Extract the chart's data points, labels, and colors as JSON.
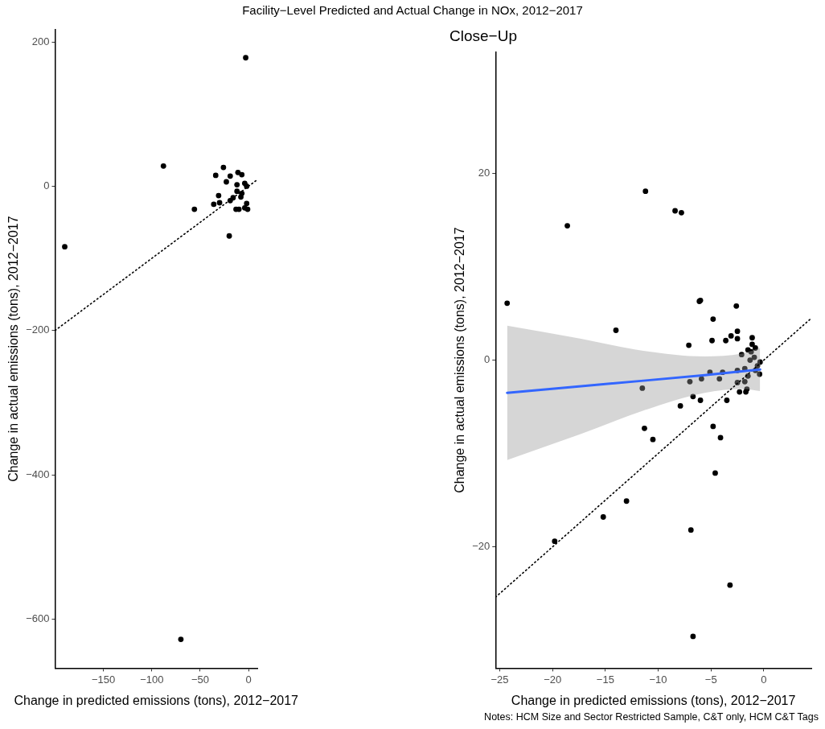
{
  "chart_data": [
    {
      "type": "scatter",
      "title": "Facility−Level Predicted and Actual Change in NOx, 2012−2017",
      "xlabel": "Change in predicted emissions (tons), 2012−2017",
      "ylabel": "Change in actual emissions (tons), 2012−2017",
      "xlim": [
        -200,
        9
      ],
      "ylim": [
        -668,
        217
      ],
      "xticks": [
        {
          "value": -150,
          "label": "−150"
        },
        {
          "value": -100,
          "label": "−100"
        },
        {
          "value": -50,
          "label": "−50"
        },
        0
      ],
      "yticks": [
        {
          "value": -600,
          "label": "−600"
        },
        {
          "value": -400,
          "label": "−400"
        },
        {
          "value": -200,
          "label": "−200"
        },
        0,
        200
      ],
      "grid": false,
      "legend": false,
      "marker": "circle",
      "series": [
        {
          "type": "scatter",
          "color": "#000000",
          "x": [
            -3,
            -190,
            -88,
            -56,
            -20,
            -70,
            -26,
            -34,
            -19,
            -11,
            -7,
            -23,
            -4,
            -12,
            -2,
            -12,
            -7,
            -31,
            -16,
            -19,
            -36,
            -30,
            -8,
            -2,
            -4,
            -13,
            -1,
            -10
          ],
          "values": [
            178,
            -84,
            28,
            -32,
            -69,
            -628,
            26,
            15,
            14,
            19,
            16,
            6,
            4,
            2,
            0,
            -7,
            -10,
            -13,
            -16,
            -20,
            -25,
            -23,
            -15,
            -24,
            -30,
            -32,
            -32,
            -32
          ]
        },
        {
          "type": "line",
          "color": "#000000",
          "line_style": "dotted",
          "marker": "none",
          "x": [
            -200,
            8
          ],
          "values": [
            -200,
            8
          ]
        }
      ]
    },
    {
      "type": "scatter",
      "title": "Close−Up",
      "xlabel": "Change in predicted emissions (tons), 2012−2017",
      "ylabel": "Change in actual emissions (tons), 2012−2017",
      "xlim": [
        -25.4,
        4.5
      ],
      "ylim": [
        -33,
        33
      ],
      "xticks": [
        {
          "value": -25,
          "label": "−25"
        },
        {
          "value": -20,
          "label": "−20"
        },
        {
          "value": -15,
          "label": "−15"
        },
        {
          "value": -10,
          "label": "−10"
        },
        {
          "value": -5,
          "label": "−5"
        },
        0
      ],
      "yticks": [
        {
          "value": -20,
          "label": "−20"
        },
        0,
        20
      ],
      "grid": false,
      "legend": false,
      "marker": "circle",
      "annotations": [
        "Notes: HCM Size and Sector Restricted Sample, C&T only, HCM C&T Tags"
      ],
      "series": [
        {
          "type": "scatter",
          "color": "#000000",
          "x": [
            -24.3,
            -11.2,
            -18.6,
            -8.4,
            -7.8,
            -14.0,
            -6.1,
            -6.0,
            -2.6,
            -4.8,
            -2.5,
            -3.1,
            -2.5,
            -4.9,
            -3.6,
            -1.1,
            -7.1,
            -1.1,
            -0.8,
            -1.5,
            -11.5,
            -7.0,
            -5.9,
            -5.1,
            -4.2,
            -3.9,
            -2.5,
            -2.5,
            -2.1,
            -1.8,
            -1.3,
            -0.9,
            -0.6,
            -0.4,
            -1.5,
            -1.8,
            -0.35,
            -1.2,
            -0.8,
            -2.3,
            -1.7,
            -1.6,
            -6.7,
            -6.0,
            -3.5,
            -7.9,
            -11.3,
            -10.5,
            -4.8,
            -4.1,
            -4.6,
            -13.0,
            -15.2,
            -19.8,
            -6.9,
            -3.2,
            -6.7
          ],
          "values": [
            6.1,
            18.1,
            14.4,
            16.0,
            15.8,
            3.2,
            6.3,
            6.4,
            5.8,
            4.4,
            3.1,
            2.6,
            2.3,
            2.1,
            2.1,
            2.4,
            1.6,
            1.7,
            1.3,
            1.1,
            -3.0,
            -2.3,
            -2.0,
            -1.3,
            -2.0,
            -1.3,
            -2.4,
            -1.1,
            0.6,
            -0.9,
            0,
            0.3,
            -0.6,
            -1.5,
            -1.7,
            -2.3,
            -0.2,
            0.9,
            -1.1,
            -3.4,
            -3.4,
            -3.1,
            -3.9,
            -4.3,
            -4.3,
            -4.9,
            -7.3,
            -8.5,
            -7.1,
            -8.3,
            -12.1,
            -15.1,
            -16.8,
            -19.4,
            -18.2,
            -24.1,
            -29.6
          ]
        },
        {
          "type": "line",
          "color": "#3366ff",
          "marker": "none",
          "x": [
            -24.3,
            -17.3,
            -11.4,
            -5.6,
            -2.1,
            -0.35
          ],
          "values": [
            -3.5,
            -2.8,
            -2.2,
            -1.6,
            -1.2,
            -1.0
          ],
          "lower": [
            -10.7,
            -7.9,
            -5.4,
            -3.5,
            -3.1,
            -3.3
          ],
          "upper": [
            3.7,
            2.3,
            1.0,
            0.4,
            0.7,
            1.3
          ]
        },
        {
          "type": "line",
          "color": "#000000",
          "line_style": "dotted",
          "marker": "none",
          "x": [
            -25.4,
            4.5
          ],
          "values": [
            -25.4,
            4.5
          ]
        }
      ]
    }
  ]
}
